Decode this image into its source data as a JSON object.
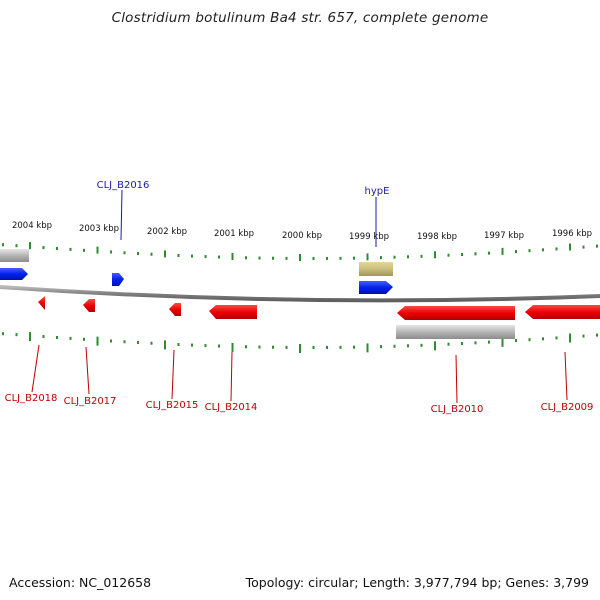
{
  "title": "Clostridium botulinum Ba4 str. 657, complete genome",
  "footer": {
    "accession": "Accession: NC_012658",
    "summary": "Topology: circular; Length: 3,977,794 bp; Genes: 3,799"
  },
  "scale_labels": [
    "2004 kbp",
    "2003 kbp",
    "2002 kbp",
    "2001 kbp",
    "2000 kbp",
    "1999 kbp",
    "1998 kbp",
    "1997 kbp",
    "1996 kbp"
  ],
  "gene_labels": {
    "top": [
      {
        "name": "CLJ_B2016",
        "color": "#1a1aa8"
      },
      {
        "name": "hypE",
        "color": "#1a1aa8"
      }
    ],
    "bottom": [
      {
        "name": "CLJ_B2018",
        "color": "#c00000"
      },
      {
        "name": "CLJ_B2017",
        "color": "#c00000"
      },
      {
        "name": "CLJ_B2015",
        "color": "#c00000"
      },
      {
        "name": "CLJ_B2014",
        "color": "#c00000"
      },
      {
        "name": "CLJ_B2010",
        "color": "#c00000"
      },
      {
        "name": "CLJ_B2009",
        "color": "#c00000"
      }
    ]
  },
  "colors": {
    "forward_gene": "#0022ee",
    "reverse_gene": "#ee0000",
    "other_feature": "#b0b0b0",
    "misc_feature": "#c8bd7a",
    "tick": "#2e8b2e",
    "backbone": "#808080"
  }
}
